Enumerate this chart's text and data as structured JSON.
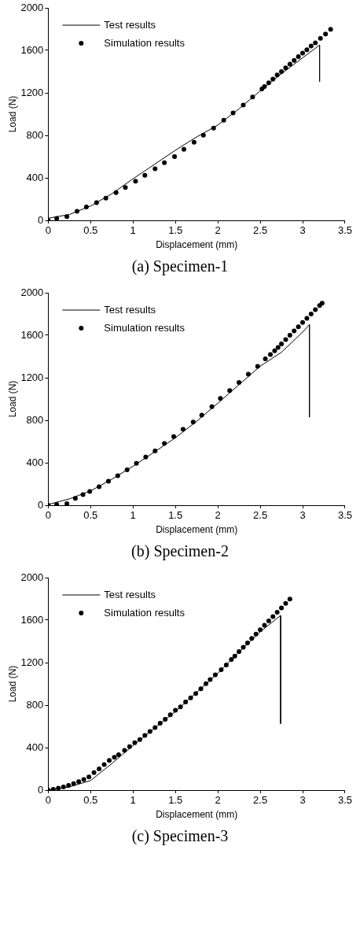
{
  "chart_data": [
    {
      "type": "line",
      "title": "(a) Specimen-1",
      "xlabel": "Displacement (mm)",
      "ylabel": "Load (N)",
      "xlim": [
        0,
        3.5
      ],
      "ylim": [
        0,
        2000
      ],
      "xticks": [
        0,
        0.5,
        1,
        1.5,
        2,
        2.5,
        3,
        3.5
      ],
      "yticks": [
        0,
        400,
        800,
        1200,
        1600,
        2000
      ],
      "grid": false,
      "legend": "top left",
      "series": [
        {
          "name": "Test results",
          "color": "#000000",
          "marker": "none",
          "line_style": "solid",
          "x": [
            0,
            0.25,
            0.5,
            0.75,
            1,
            1.25,
            1.5,
            1.75,
            2,
            2.25,
            2.5,
            2.75,
            3,
            3.2,
            3.2
          ],
          "values": [
            20,
            55,
            135,
            250,
            391,
            525,
            660,
            785,
            897,
            1050,
            1219,
            1380,
            1530,
            1650,
            1306
          ]
        },
        {
          "name": "Simulation results",
          "type": "scatter",
          "color": "#000000",
          "marker": "circle",
          "x": [
            0,
            0.1,
            0.22,
            0.34,
            0.45,
            0.57,
            0.68,
            0.8,
            0.91,
            1.03,
            1.14,
            1.26,
            1.37,
            1.49,
            1.6,
            1.72,
            1.83,
            1.95,
            2.07,
            2.18,
            2.3,
            2.41,
            2.52,
            2.55,
            2.6,
            2.65,
            2.7,
            2.75,
            2.8,
            2.85,
            2.9,
            2.95,
            3,
            3.05,
            3.1,
            3.15,
            3.21,
            3.27,
            3.33
          ],
          "values": [
            0,
            18,
            35,
            85,
            126,
            166,
            209,
            262,
            310,
            368,
            425,
            485,
            543,
            600,
            669,
            736,
            802,
            869,
            943,
            1011,
            1085,
            1161,
            1237,
            1260,
            1295,
            1330,
            1368,
            1400,
            1435,
            1470,
            1505,
            1540,
            1575,
            1605,
            1640,
            1671,
            1713,
            1754,
            1798
          ]
        }
      ]
    },
    {
      "type": "line",
      "title": "(b) Specimen-2",
      "xlabel": "Displacement (mm)",
      "ylabel": "Load (N)",
      "xlim": [
        0,
        3.5
      ],
      "ylim": [
        0,
        2000
      ],
      "xticks": [
        0,
        0.5,
        1,
        1.5,
        2,
        2.5,
        3,
        3.5
      ],
      "yticks": [
        0,
        400,
        800,
        1200,
        1600,
        2000
      ],
      "grid": false,
      "legend": "top left",
      "series": [
        {
          "name": "Test results",
          "color": "#000000",
          "marker": "none",
          "line_style": "solid",
          "x": [
            0,
            0.25,
            0.5,
            0.75,
            1,
            1.25,
            1.5,
            1.75,
            2,
            2.25,
            2.5,
            2.75,
            3,
            3.08,
            3.08
          ],
          "values": [
            7,
            60,
            135,
            245,
            367,
            500,
            635,
            790,
            960,
            1135,
            1309,
            1440,
            1630,
            1700,
            828
          ]
        },
        {
          "name": "Simulation results",
          "type": "scatter",
          "color": "#000000",
          "marker": "circle",
          "x": [
            0,
            0.1,
            0.22,
            0.32,
            0.41,
            0.49,
            0.6,
            0.71,
            0.82,
            0.93,
            1.04,
            1.15,
            1.26,
            1.37,
            1.48,
            1.59,
            1.71,
            1.81,
            1.93,
            2.03,
            2.14,
            2.25,
            2.36,
            2.47,
            2.56,
            2.62,
            2.67,
            2.71,
            2.75,
            2.8,
            2.85,
            2.9,
            2.95,
            3,
            3.05,
            3.1,
            3.15,
            3.2,
            3.23
          ],
          "values": [
            0,
            8,
            14,
            65,
            100,
            130,
            174,
            226,
            277,
            333,
            395,
            453,
            512,
            581,
            647,
            714,
            784,
            849,
            928,
            1005,
            1079,
            1156,
            1233,
            1307,
            1377,
            1419,
            1453,
            1486,
            1519,
            1560,
            1600,
            1640,
            1680,
            1720,
            1760,
            1800,
            1840,
            1880,
            1902
          ]
        }
      ]
    },
    {
      "type": "line",
      "title": "(c) Specimen-3",
      "xlabel": "Displacement (mm)",
      "ylabel": "Load (N)",
      "xlim": [
        0,
        3.5
      ],
      "ylim": [
        0,
        2000
      ],
      "xticks": [
        0,
        0.5,
        1,
        1.5,
        2,
        2.5,
        3,
        3.5
      ],
      "yticks": [
        0,
        400,
        800,
        1200,
        1600,
        2000
      ],
      "grid": false,
      "legend": "top left",
      "series": [
        {
          "name": "Test results",
          "color": "#000000",
          "marker": "none",
          "line_style": "solid",
          "x": [
            0,
            0.25,
            0.5,
            0.75,
            1,
            1.25,
            1.5,
            1.75,
            2,
            2.25,
            2.5,
            2.74,
            2.74
          ],
          "values": [
            0,
            30,
            90,
            250,
            420,
            580,
            740,
            920,
            1100,
            1300,
            1490,
            1644,
            625
          ]
        },
        {
          "name": "Simulation results",
          "type": "scatter",
          "color": "#000000",
          "marker": "circle",
          "x": [
            0,
            0.06,
            0.12,
            0.18,
            0.24,
            0.3,
            0.36,
            0.42,
            0.48,
            0.54,
            0.6,
            0.66,
            0.72,
            0.78,
            0.83,
            0.9,
            0.96,
            1.02,
            1.08,
            1.14,
            1.2,
            1.26,
            1.32,
            1.38,
            1.44,
            1.5,
            1.56,
            1.62,
            1.68,
            1.74,
            1.8,
            1.86,
            1.91,
            1.97,
            2.04,
            2.1,
            2.16,
            2.2,
            2.25,
            2.3,
            2.35,
            2.4,
            2.45,
            2.5,
            2.55,
            2.6,
            2.65,
            2.7,
            2.75,
            2.8,
            2.85
          ],
          "values": [
            0,
            8,
            18,
            30,
            45,
            62,
            80,
            100,
            125,
            165,
            200,
            240,
            280,
            310,
            333,
            375,
            409,
            446,
            476,
            515,
            552,
            589,
            630,
            667,
            710,
            752,
            784,
            830,
            869,
            910,
            954,
            1002,
            1041,
            1085,
            1133,
            1177,
            1230,
            1262,
            1304,
            1345,
            1386,
            1427,
            1468,
            1510,
            1551,
            1592,
            1633,
            1674,
            1715,
            1757,
            1798
          ]
        }
      ]
    }
  ]
}
